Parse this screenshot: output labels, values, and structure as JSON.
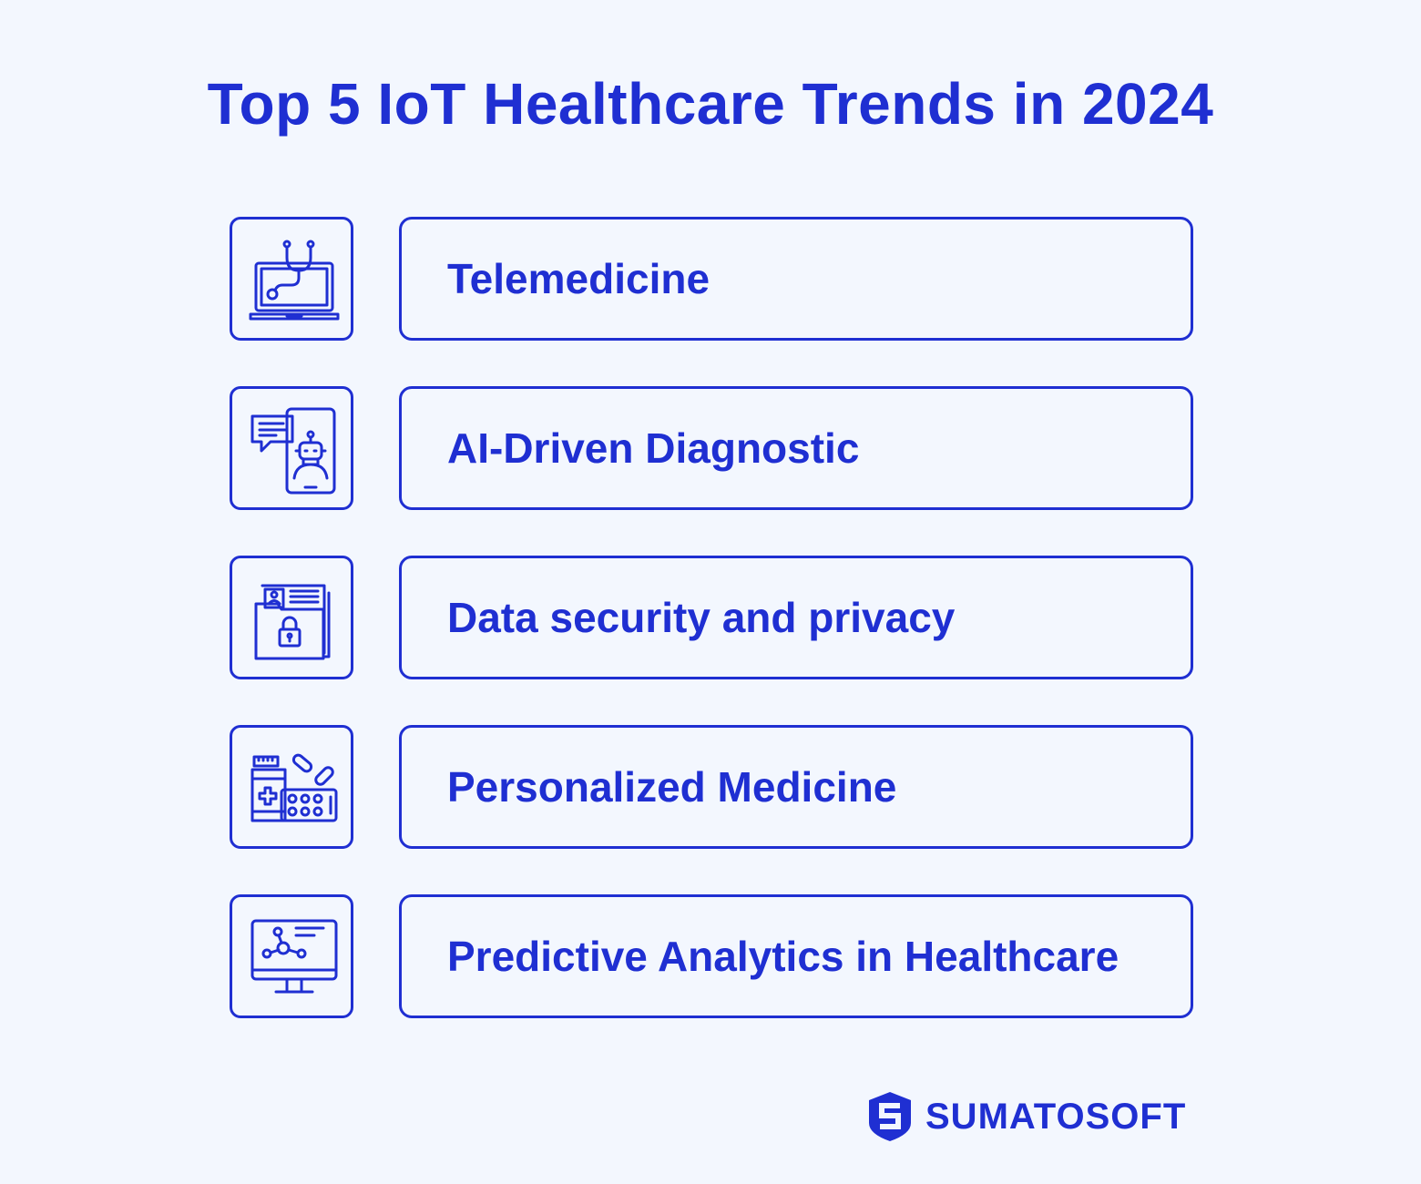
{
  "title": "Top 5 IoT Healthcare Trends in 2024",
  "trends": [
    {
      "label": "Telemedicine",
      "icon": "laptop-stethoscope-icon"
    },
    {
      "label": "AI-Driven Diagnostic",
      "icon": "phone-robot-chat-icon"
    },
    {
      "label": "Data security and privacy",
      "icon": "secure-folder-icon"
    },
    {
      "label": "Personalized Medicine",
      "icon": "medicine-pills-icon"
    },
    {
      "label": "Predictive Analytics in Healthcare",
      "icon": "monitor-network-icon"
    }
  ],
  "brand": {
    "name": "SUMATOSOFT",
    "icon": "sumatosoft-logo-icon"
  },
  "colors": {
    "accent": "#1f2fd2",
    "background": "#f3f7fe"
  }
}
